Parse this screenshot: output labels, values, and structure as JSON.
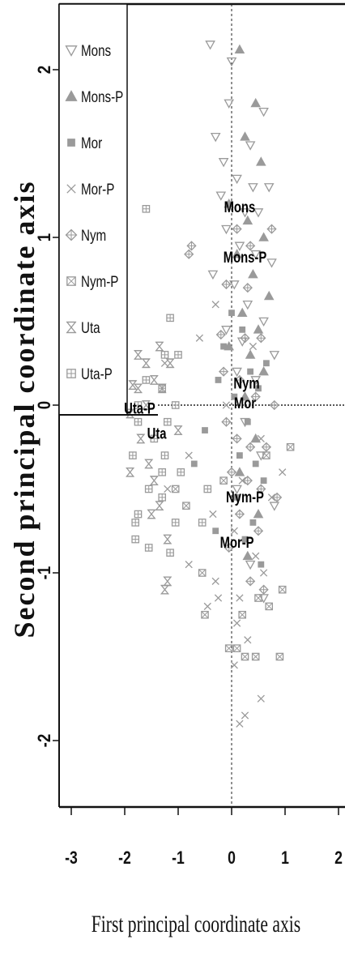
{
  "chart_data": {
    "type": "scatter",
    "xlabel": "First principal coordinate axis",
    "ylabel": "Second principal coordinate axis",
    "xlim": [
      -3.1,
      2.1
    ],
    "ylim": [
      -2.35,
      2.4
    ],
    "xticks": [
      "-3",
      "-2",
      "-1",
      "0",
      "1",
      "2"
    ],
    "yticks": [
      "2",
      "1",
      "0",
      "-1",
      "-2"
    ],
    "reference_lines": {
      "x": 0,
      "y": 0
    },
    "legend_position": "top-left",
    "legend": [
      {
        "label": "Mons",
        "marker": "triangle-down-open",
        "color": "#9a9a9a"
      },
      {
        "label": "Mons-P",
        "marker": "triangle-up-filled",
        "color": "#9a9a9a"
      },
      {
        "label": "Mor",
        "marker": "square-filled",
        "color": "#9a9a9a"
      },
      {
        "label": "Mor-P",
        "marker": "cross",
        "color": "#9a9a9a"
      },
      {
        "label": "Nym",
        "marker": "diamond-plus",
        "color": "#9a9a9a"
      },
      {
        "label": "Nym-P",
        "marker": "square-x",
        "color": "#9a9a9a"
      },
      {
        "label": "Uta",
        "marker": "hourglass",
        "color": "#9a9a9a"
      },
      {
        "label": "Uta-P",
        "marker": "square-plus",
        "color": "#9a9a9a"
      }
    ],
    "group_labels": [
      {
        "text": "Mons",
        "x": 0.15,
        "y": 1.15
      },
      {
        "text": "Mons-P",
        "x": 0.25,
        "y": 0.85
      },
      {
        "text": "Nym",
        "x": 0.28,
        "y": 0.1
      },
      {
        "text": "Mor",
        "x": 0.25,
        "y": -0.02
      },
      {
        "text": "Uta-P",
        "x": -1.72,
        "y": -0.05
      },
      {
        "text": "Uta",
        "x": -1.4,
        "y": -0.2
      },
      {
        "text": "Nym-P",
        "x": 0.25,
        "y": -0.58
      },
      {
        "text": "Mor-P",
        "x": 0.1,
        "y": -0.85
      }
    ],
    "series": [
      {
        "name": "Mons",
        "points": [
          [
            -0.4,
            2.15
          ],
          [
            0.0,
            2.05
          ],
          [
            -0.05,
            1.8
          ],
          [
            0.6,
            1.75
          ],
          [
            -0.3,
            1.6
          ],
          [
            0.35,
            1.55
          ],
          [
            -0.15,
            1.45
          ],
          [
            0.1,
            1.35
          ],
          [
            0.4,
            1.3
          ],
          [
            0.7,
            1.3
          ],
          [
            -0.2,
            1.25
          ],
          [
            0.25,
            1.15
          ],
          [
            0.5,
            1.15
          ],
          [
            -0.1,
            1.05
          ],
          [
            0.15,
            0.95
          ],
          [
            0.45,
            0.9
          ],
          [
            0.75,
            0.85
          ],
          [
            -0.35,
            0.78
          ],
          [
            0.05,
            0.72
          ],
          [
            0.3,
            0.6
          ],
          [
            0.6,
            0.5
          ],
          [
            -0.1,
            0.45
          ],
          [
            0.2,
            0.38
          ],
          [
            0.8,
            0.3
          ],
          [
            0.1,
            0.2
          ],
          [
            0.45,
            0.15
          ],
          [
            0.25,
            -0.1
          ],
          [
            0.55,
            -0.3
          ],
          [
            0.1,
            -0.5
          ],
          [
            0.8,
            -0.6
          ],
          [
            0.35,
            -0.95
          ],
          [
            0.6,
            -1.15
          ]
        ]
      },
      {
        "name": "Mons-P",
        "points": [
          [
            0.15,
            2.12
          ],
          [
            0.45,
            1.8
          ],
          [
            0.25,
            1.6
          ],
          [
            0.55,
            1.45
          ],
          [
            -0.05,
            1.2
          ],
          [
            0.3,
            1.1
          ],
          [
            0.6,
            1.0
          ],
          [
            0.1,
            0.9
          ],
          [
            0.4,
            0.78
          ],
          [
            0.7,
            0.65
          ],
          [
            0.2,
            0.55
          ],
          [
            0.5,
            0.45
          ],
          [
            -0.05,
            0.35
          ],
          [
            0.35,
            0.3
          ],
          [
            0.6,
            0.2
          ],
          [
            0.25,
            0.05
          ],
          [
            0.45,
            -0.2
          ],
          [
            0.15,
            -0.4
          ],
          [
            0.5,
            -0.65
          ],
          [
            0.3,
            -0.9
          ]
        ]
      },
      {
        "name": "Mor",
        "points": [
          [
            0.0,
            0.55
          ],
          [
            0.2,
            0.45
          ],
          [
            -0.15,
            0.35
          ],
          [
            0.35,
            0.2
          ],
          [
            -0.25,
            0.15
          ],
          [
            0.5,
            0.1
          ],
          [
            0.05,
            0.05
          ],
          [
            0.65,
            0.25
          ],
          [
            0.3,
            -0.1
          ],
          [
            -0.5,
            -0.15
          ],
          [
            0.15,
            -0.3
          ],
          [
            0.45,
            -0.35
          ],
          [
            -0.7,
            -0.35
          ],
          [
            0.1,
            -0.55
          ],
          [
            0.6,
            -0.45
          ],
          [
            0.25,
            -0.8
          ],
          [
            0.55,
            -0.95
          ],
          [
            -0.3,
            -0.75
          ],
          [
            0.4,
            -0.7
          ]
        ]
      },
      {
        "name": "Mor-P",
        "points": [
          [
            -0.3,
            0.6
          ],
          [
            -0.6,
            0.4
          ],
          [
            -1.25,
            0.25
          ],
          [
            0.4,
            0.35
          ],
          [
            -0.1,
            0.0
          ],
          [
            0.55,
            -0.2
          ],
          [
            -0.8,
            -0.3
          ],
          [
            -1.2,
            -0.5
          ],
          [
            0.95,
            -0.4
          ],
          [
            0.2,
            -0.45
          ],
          [
            0.75,
            -0.55
          ],
          [
            -0.35,
            -0.65
          ],
          [
            0.05,
            -0.75
          ],
          [
            0.45,
            -0.9
          ],
          [
            -0.8,
            -0.95
          ],
          [
            -0.3,
            -1.05
          ],
          [
            0.6,
            -1.0
          ],
          [
            0.15,
            -1.15
          ],
          [
            -0.25,
            -1.15
          ],
          [
            0.1,
            -1.3
          ],
          [
            0.3,
            -1.4
          ],
          [
            0.05,
            -1.55
          ],
          [
            0.25,
            -1.85
          ],
          [
            0.15,
            -1.9
          ],
          [
            0.55,
            -1.75
          ],
          [
            -0.45,
            -1.2
          ]
        ]
      },
      {
        "name": "Nym",
        "points": [
          [
            -0.75,
            0.95
          ],
          [
            -0.8,
            0.9
          ],
          [
            0.1,
            1.05
          ],
          [
            0.35,
            0.95
          ],
          [
            0.75,
            1.05
          ],
          [
            -0.1,
            0.72
          ],
          [
            0.3,
            0.7
          ],
          [
            -0.2,
            0.42
          ],
          [
            0.25,
            0.4
          ],
          [
            0.55,
            0.4
          ],
          [
            -0.15,
            0.2
          ],
          [
            0.15,
            0.15
          ],
          [
            0.45,
            0.05
          ],
          [
            0.8,
            0.0
          ],
          [
            -0.1,
            -0.1
          ],
          [
            0.1,
            -0.2
          ],
          [
            0.35,
            -0.25
          ],
          [
            0.65,
            -0.25
          ],
          [
            0.0,
            -0.4
          ],
          [
            0.3,
            -0.45
          ],
          [
            0.55,
            -0.5
          ],
          [
            0.85,
            -0.55
          ],
          [
            0.15,
            -0.65
          ],
          [
            0.5,
            -0.75
          ],
          [
            -0.05,
            -0.85
          ],
          [
            0.35,
            -1.05
          ],
          [
            0.6,
            -1.1
          ]
        ]
      },
      {
        "name": "Nym-P",
        "points": [
          [
            -1.05,
            -0.5
          ],
          [
            -0.85,
            -0.6
          ],
          [
            -0.55,
            -1.0
          ],
          [
            -0.5,
            -1.25
          ],
          [
            -0.05,
            -1.45
          ],
          [
            0.1,
            -1.45
          ],
          [
            0.25,
            -1.5
          ],
          [
            0.45,
            -1.5
          ],
          [
            0.9,
            -1.5
          ],
          [
            0.7,
            -1.2
          ],
          [
            0.5,
            -1.15
          ],
          [
            0.95,
            -1.1
          ],
          [
            0.2,
            -1.25
          ],
          [
            -0.15,
            -0.45
          ],
          [
            1.1,
            -0.25
          ],
          [
            0.65,
            -0.3
          ]
        ]
      },
      {
        "name": "Uta",
        "points": [
          [
            -1.75,
            0.3
          ],
          [
            -1.85,
            0.12
          ],
          [
            -1.9,
            -0.05
          ],
          [
            -1.6,
            0.0
          ],
          [
            -1.45,
            0.15
          ],
          [
            -1.3,
            0.1
          ],
          [
            -1.7,
            -0.2
          ],
          [
            -1.55,
            -0.35
          ],
          [
            -1.9,
            -0.4
          ],
          [
            -1.45,
            -0.45
          ],
          [
            -1.35,
            -0.6
          ],
          [
            -1.5,
            -0.65
          ],
          [
            -1.2,
            -0.8
          ],
          [
            -1.75,
            0.1
          ],
          [
            -1.2,
            -1.05
          ],
          [
            -1.25,
            -1.1
          ],
          [
            -1.15,
            0.25
          ],
          [
            -1.0,
            -0.15
          ],
          [
            -1.35,
            0.35
          ],
          [
            -1.6,
            0.25
          ]
        ]
      },
      {
        "name": "Uta-P",
        "points": [
          [
            -1.6,
            1.17
          ],
          [
            -1.15,
            0.52
          ],
          [
            -1.25,
            0.3
          ],
          [
            -1.6,
            0.15
          ],
          [
            -1.75,
            -0.1
          ],
          [
            -1.45,
            -0.2
          ],
          [
            -1.25,
            -0.3
          ],
          [
            -1.85,
            -0.3
          ],
          [
            -0.95,
            -0.4
          ],
          [
            -1.55,
            -0.5
          ],
          [
            -1.3,
            -0.55
          ],
          [
            -1.8,
            -0.8
          ],
          [
            -1.15,
            -0.88
          ],
          [
            -1.75,
            -0.65
          ],
          [
            -0.55,
            -0.7
          ],
          [
            -1.2,
            -0.1
          ],
          [
            -0.45,
            -0.5
          ],
          [
            -1.05,
            0.0
          ],
          [
            -1.75,
            0.0
          ],
          [
            -1.3,
            0.1
          ],
          [
            -1.05,
            -0.7
          ],
          [
            -1.8,
            -0.7
          ],
          [
            -1.3,
            -0.4
          ],
          [
            -1.0,
            0.3
          ],
          [
            -1.55,
            -0.85
          ]
        ]
      }
    ]
  }
}
